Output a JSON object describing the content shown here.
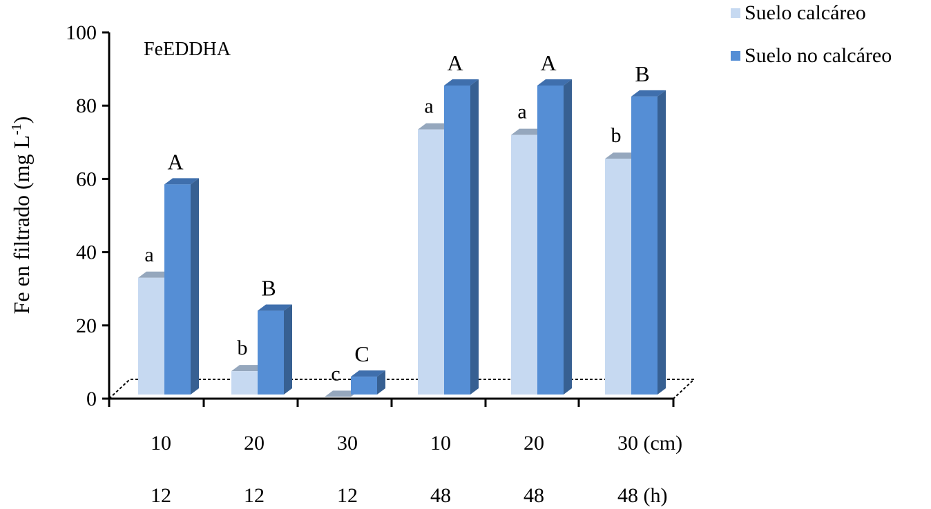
{
  "chart_data": {
    "type": "bar",
    "annotation": "FeEDDHA",
    "ylabel": "Fe en filtrado (mg L",
    "ylabel_sup": "-1",
    "ylabel_close": ")",
    "ylim": [
      0,
      100
    ],
    "yticks": [
      0,
      20,
      40,
      60,
      80,
      100
    ],
    "grid": false,
    "legend_position": "top-right",
    "categories": [
      "10",
      "20",
      "30 (cm)",
      "10",
      "20",
      "30 (cm)"
    ],
    "x_row1": [
      "10",
      "20",
      "30",
      "10",
      "20",
      "30 (cm)"
    ],
    "x_row2": [
      "12",
      "12",
      "12",
      "48",
      "48",
      "48 (h)"
    ],
    "series": [
      {
        "name": "Suelo calcáreo",
        "color": "#c6d9f1",
        "values": [
          33,
          7.5,
          0.5,
          73.5,
          72,
          65.5
        ],
        "labels": [
          "a",
          "b",
          "c",
          "a",
          "a",
          "b"
        ]
      },
      {
        "name": "Suelo no calcáreo",
        "color": "#558ed5",
        "values": [
          58.5,
          24,
          6,
          85.5,
          85.5,
          82.5
        ],
        "labels": [
          "A",
          "B",
          "C",
          "A",
          "A",
          "B"
        ]
      }
    ]
  }
}
